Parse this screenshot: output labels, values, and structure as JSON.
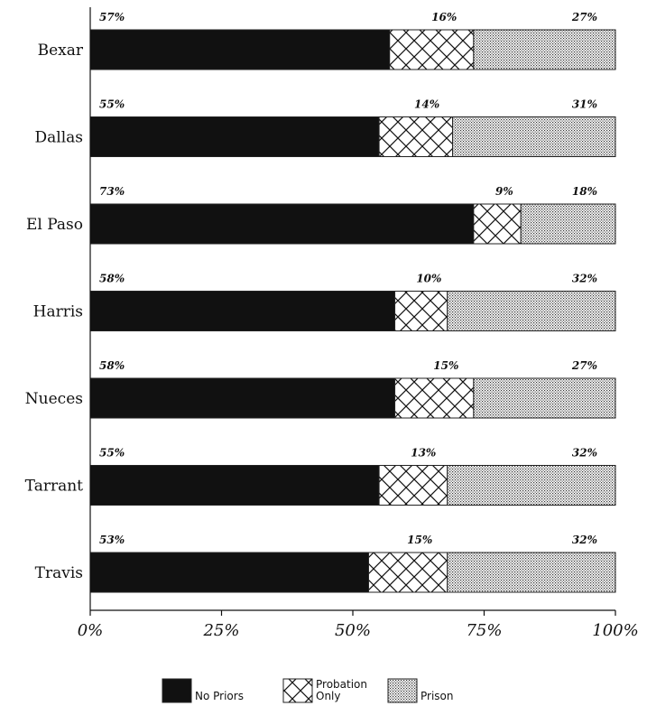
{
  "chart_data": {
    "type": "bar",
    "orientation": "horizontal",
    "stacked": true,
    "categories": [
      "Bexar",
      "Dallas",
      "El Paso",
      "Harris",
      "Nueces",
      "Tarrant",
      "Travis"
    ],
    "series": [
      {
        "name": "No Priors",
        "values": [
          57,
          55,
          73,
          58,
          58,
          55,
          53
        ],
        "labels": [
          "57%",
          "55%",
          "73%",
          "58%",
          "58%",
          "55%",
          "53%"
        ],
        "pattern": "solid-black"
      },
      {
        "name": "Probation Only",
        "name_lines": [
          "Probation",
          "Only"
        ],
        "values": [
          16,
          14,
          9,
          10,
          15,
          13,
          15
        ],
        "labels": [
          "16%",
          "14%",
          "9%",
          "10%",
          "15%",
          "13%",
          "15%"
        ],
        "pattern": "crosshatch"
      },
      {
        "name": "Prison",
        "values": [
          27,
          31,
          18,
          32,
          27,
          32,
          32
        ],
        "labels": [
          "27%",
          "31%",
          "18%",
          "32%",
          "27%",
          "32%",
          "32%"
        ],
        "pattern": "stipple"
      }
    ],
    "xlim": [
      0,
      100
    ],
    "xticks": [
      0,
      25,
      50,
      75,
      100
    ],
    "xtick_labels": [
      "0%",
      "25%",
      "50%",
      "75%",
      "100%"
    ],
    "grid": false,
    "legend_position": "bottom-center",
    "colors": {
      "solid": "#111111",
      "line": "#222222"
    }
  }
}
